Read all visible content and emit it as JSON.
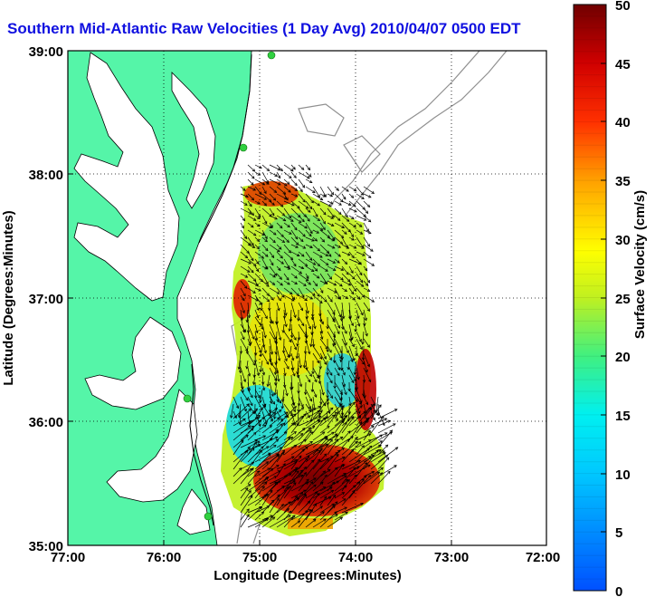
{
  "title": "Southern Mid-Atlantic Raw Velocities (1 Day Avg) 2010/04/07 0500 EDT",
  "map": {
    "lon_ticks": [
      "77:00",
      "76:00",
      "75:00",
      "74:00",
      "73:00",
      "72:00"
    ],
    "lat_ticks": [
      "39:00",
      "38:00",
      "37:00",
      "36:00",
      "35:00"
    ],
    "xlabel": "Longitude (Degrees:Minutes)",
    "ylabel": "Latitude (Degrees:Minutes)"
  },
  "colorbar": {
    "label": "Surface Velocity (cm/s)",
    "ticks": [
      "50",
      "45",
      "40",
      "35",
      "30",
      "25",
      "20",
      "15",
      "10",
      "5",
      "0"
    ],
    "min": 0,
    "max": 50
  },
  "colors": {
    "land": "#55f5a8",
    "title": "#1010e0",
    "station": "#30d040"
  }
}
